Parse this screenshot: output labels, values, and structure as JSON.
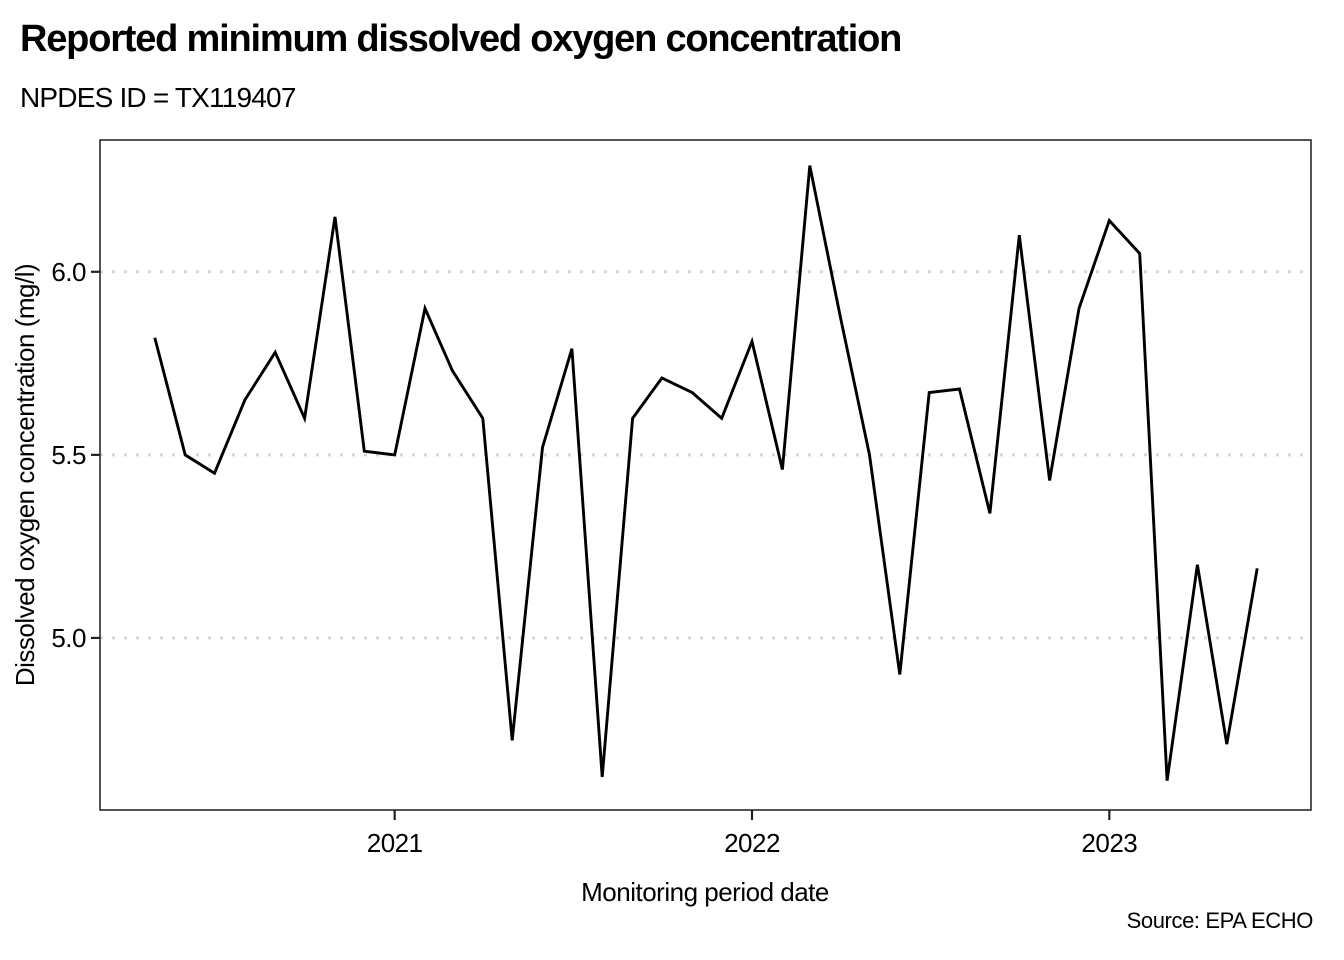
{
  "page": {
    "background_color": "#ffffff"
  },
  "chart_data": {
    "type": "line",
    "title": "Reported minimum dissolved oxygen concentration",
    "subtitle": "NPDES ID = TX119407",
    "source_note": "Source: EPA ECHO",
    "xlabel": "Monitoring period date",
    "ylabel": "Dissolved oxygen concentration (mg/l)",
    "x": [
      "2020-05",
      "2020-06",
      "2020-07",
      "2020-08",
      "2020-09",
      "2020-10",
      "2020-11",
      "2020-12",
      "2021-01",
      "2021-02",
      "2021-03",
      "2021-04",
      "2021-05",
      "2021-06",
      "2021-07",
      "2021-08",
      "2021-09",
      "2021-10",
      "2021-11",
      "2021-12",
      "2022-01",
      "2022-02",
      "2022-03",
      "2022-04",
      "2022-05",
      "2022-06",
      "2022-07",
      "2022-08",
      "2022-09",
      "2022-10",
      "2022-11",
      "2022-12",
      "2023-01",
      "2023-02",
      "2023-03",
      "2023-04",
      "2023-05",
      "2023-06"
    ],
    "values": [
      5.82,
      5.5,
      5.45,
      5.65,
      5.78,
      5.6,
      6.15,
      5.51,
      5.5,
      5.9,
      5.73,
      5.6,
      4.72,
      5.52,
      5.79,
      4.62,
      5.6,
      5.71,
      5.67,
      5.6,
      5.81,
      5.46,
      6.29,
      5.88,
      5.5,
      4.9,
      5.67,
      5.68,
      5.34,
      6.1,
      5.43,
      5.9,
      6.14,
      6.05,
      4.61,
      5.2,
      4.71,
      5.19
    ],
    "yticks": [
      5.0,
      5.5,
      6.0
    ],
    "ytick_labels": [
      "5.0",
      "5.5",
      "6.0"
    ],
    "xticks": [
      "2021-01",
      "2022-01",
      "2023-01"
    ],
    "xtick_labels": [
      "2021",
      "2022",
      "2023"
    ],
    "ylim": [
      4.53,
      6.36
    ],
    "xlim": [
      "2020-03-06",
      "2023-07-26"
    ],
    "grid": "horizontal dotted gridlines at y ticks only",
    "legend": "none",
    "line_color": "#000000",
    "grid_color": "#d6d6d6",
    "border_color": "#2a2a2a",
    "tick_color": "#222222"
  }
}
